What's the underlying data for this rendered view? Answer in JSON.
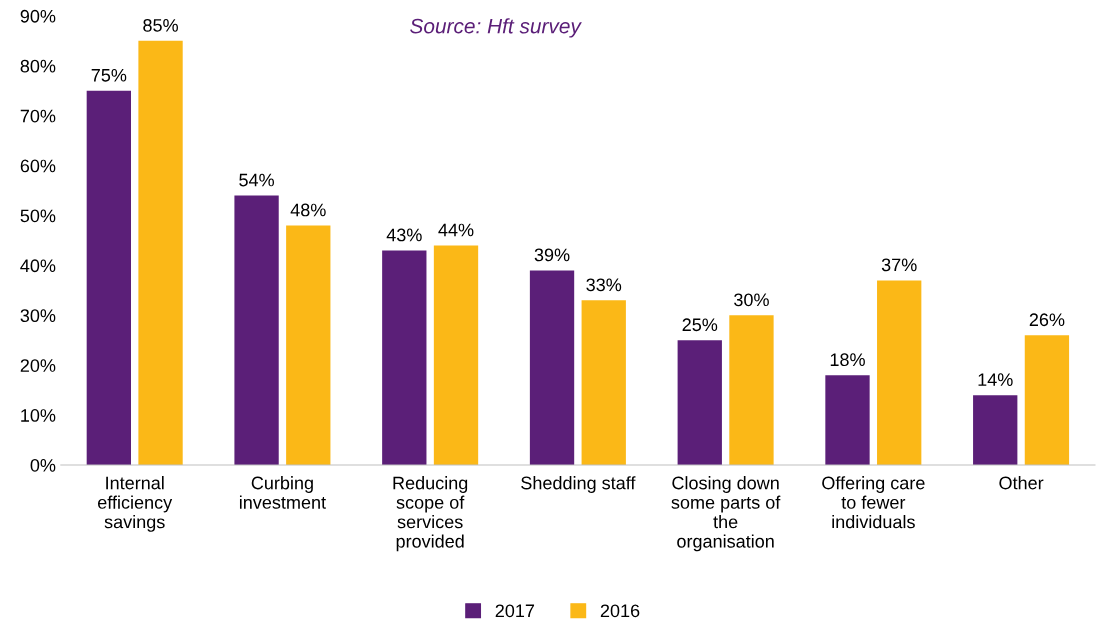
{
  "chart_data": {
    "type": "bar",
    "annotations": [
      "Source: Hft survey"
    ],
    "categories": [
      "Internal\nefficiency\nsavings",
      "Curbing\ninvestment",
      "Reducing\nscope of\nservices\nprovided",
      "Shedding staff",
      "Closing down\nsome parts of\nthe\norganisation",
      "Offering care\nto fewer\nindividuals",
      "Other"
    ],
    "series": [
      {
        "name": "2017",
        "color": "#5b1f78",
        "values": [
          75,
          54,
          43,
          39,
          25,
          18,
          14
        ],
        "value_labels": [
          "75%",
          "54%",
          "43%",
          "39%",
          "25%",
          "18%",
          "14%"
        ]
      },
      {
        "name": "2016",
        "color": "#fbb817",
        "values": [
          85,
          48,
          44,
          33,
          30,
          37,
          26
        ],
        "value_labels": [
          "85%",
          "48%",
          "44%",
          "33%",
          "30%",
          "37%",
          "26%"
        ]
      }
    ],
    "ylim": [
      0,
      90
    ],
    "yticks": [
      {
        "value": 0,
        "label": "0%"
      },
      {
        "value": 10,
        "label": "10%"
      },
      {
        "value": 20,
        "label": "20%"
      },
      {
        "value": 30,
        "label": "30%"
      },
      {
        "value": 40,
        "label": "40%"
      },
      {
        "value": 50,
        "label": "50%"
      },
      {
        "value": 60,
        "label": "60%"
      },
      {
        "value": 70,
        "label": "70%"
      },
      {
        "value": 80,
        "label": "80%"
      },
      {
        "value": 90,
        "label": "90%"
      }
    ],
    "grid": false,
    "legend": "bottom"
  }
}
